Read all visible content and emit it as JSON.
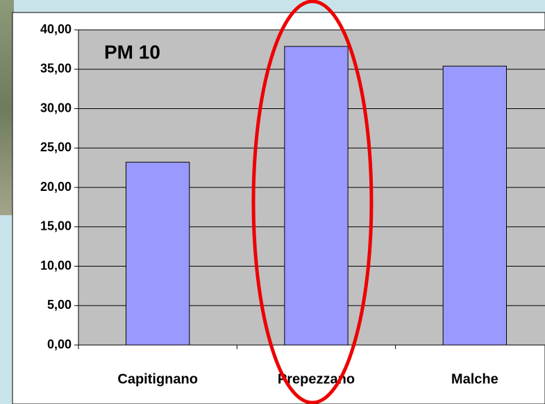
{
  "chart_data": {
    "type": "bar",
    "title": "PM 10",
    "categories": [
      "Capitignano",
      "Prepezzano",
      "Malche"
    ],
    "values": [
      23.2,
      37.9,
      35.4
    ],
    "color": "#9999ff",
    "ylim": [
      0,
      40
    ],
    "yticks": [
      {
        "value": 0,
        "label": "0,00"
      },
      {
        "value": 5,
        "label": "5,00"
      },
      {
        "value": 10,
        "label": "10,00"
      },
      {
        "value": 15,
        "label": "15,00"
      },
      {
        "value": 20,
        "label": "20,00"
      },
      {
        "value": 25,
        "label": "25,00"
      },
      {
        "value": 30,
        "label": "30,00"
      },
      {
        "value": 35,
        "label": "35,00"
      },
      {
        "value": 40,
        "label": "40,00"
      }
    ],
    "grid": true
  }
}
